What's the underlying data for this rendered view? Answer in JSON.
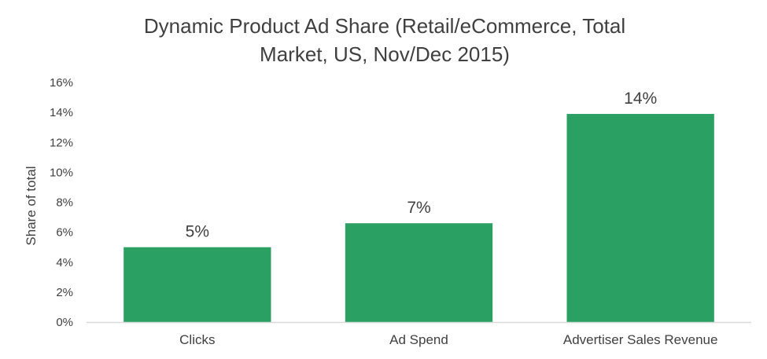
{
  "chart_data": {
    "type": "bar",
    "title_lines": [
      "Dynamic Product Ad Share (Retail/eCommerce, Total",
      "Market, US, Nov/Dec 2015)"
    ],
    "xlabel": "",
    "ylabel": "Share of total",
    "categories": [
      "Clicks",
      "Ad Spend",
      "Advertiser Sales Revenue"
    ],
    "values": [
      5,
      6.6,
      13.9
    ],
    "data_labels": [
      "5%",
      "7%",
      "14%"
    ],
    "ylim": [
      0,
      16
    ],
    "yticks": [
      0,
      2,
      4,
      6,
      8,
      10,
      12,
      14,
      16
    ],
    "ytick_labels": [
      "0%",
      "2%",
      "4%",
      "6%",
      "8%",
      "10%",
      "12%",
      "14%",
      "16%"
    ],
    "grid": false,
    "legend": "none",
    "bar_color": "#2aa162",
    "text_color": "#404040",
    "axis_color": "#d9d9d9"
  }
}
